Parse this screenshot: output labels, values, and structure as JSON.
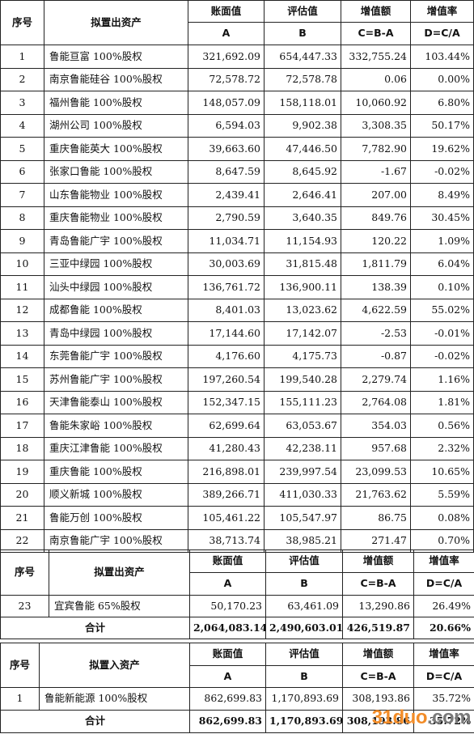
{
  "table1": {
    "headers": {
      "index": "序号",
      "asset": "拟置出资产",
      "book": "账面值",
      "appraised": "评估值",
      "increase": "增值额",
      "rate": "增值率",
      "book_sub": "A",
      "appraised_sub": "B",
      "increase_sub": "C=B-A",
      "rate_sub": "D=C/A"
    },
    "rows": [
      {
        "idx": "1",
        "name": "鲁能亘富 100%股权",
        "a": "321,692.09",
        "b": "654,447.33",
        "c": "332,755.24",
        "d": "103.44%"
      },
      {
        "idx": "2",
        "name": "南京鲁能硅谷 100%股权",
        "a": "72,578.72",
        "b": "72,578.78",
        "c": "0.06",
        "d": "0.00%"
      },
      {
        "idx": "3",
        "name": "福州鲁能 100%股权",
        "a": "148,057.09",
        "b": "158,118.01",
        "c": "10,060.92",
        "d": "6.80%"
      },
      {
        "idx": "4",
        "name": "湖州公司 100%股权",
        "a": "6,594.03",
        "b": "9,902.38",
        "c": "3,308.35",
        "d": "50.17%"
      },
      {
        "idx": "5",
        "name": "重庆鲁能英大 100%股权",
        "a": "39,663.60",
        "b": "47,446.50",
        "c": "7,782.90",
        "d": "19.62%"
      },
      {
        "idx": "6",
        "name": "张家口鲁能 100%股权",
        "a": "8,647.59",
        "b": "8,645.92",
        "c": "-1.67",
        "d": "-0.02%"
      },
      {
        "idx": "7",
        "name": "山东鲁能物业 100%股权",
        "a": "2,439.41",
        "b": "2,646.41",
        "c": "207.00",
        "d": "8.49%"
      },
      {
        "idx": "8",
        "name": "重庆鲁能物业 100%股权",
        "a": "2,790.59",
        "b": "3,640.35",
        "c": "849.76",
        "d": "30.45%"
      },
      {
        "idx": "9",
        "name": "青岛鲁能广宇 100%股权",
        "a": "11,034.71",
        "b": "11,154.93",
        "c": "120.22",
        "d": "1.09%"
      },
      {
        "idx": "10",
        "name": "三亚中绿园 100%股权",
        "a": "30,003.69",
        "b": "31,815.48",
        "c": "1,811.79",
        "d": "6.04%"
      },
      {
        "idx": "11",
        "name": "汕头中绿园 100%股权",
        "a": "136,761.72",
        "b": "136,900.11",
        "c": "138.39",
        "d": "0.10%"
      },
      {
        "idx": "12",
        "name": "成都鲁能 100%股权",
        "a": "8,401.03",
        "b": "13,023.62",
        "c": "4,622.59",
        "d": "55.02%"
      },
      {
        "idx": "13",
        "name": "青岛中绿园 100%股权",
        "a": "17,144.60",
        "b": "17,142.07",
        "c": "-2.53",
        "d": "-0.01%"
      },
      {
        "idx": "14",
        "name": "东莞鲁能广宇 100%股权",
        "a": "4,176.60",
        "b": "4,175.73",
        "c": "-0.87",
        "d": "-0.02%"
      },
      {
        "idx": "15",
        "name": "苏州鲁能广宇 100%股权",
        "a": "197,260.54",
        "b": "199,540.28",
        "c": "2,279.74",
        "d": "1.16%"
      },
      {
        "idx": "16",
        "name": "天津鲁能泰山 100%股权",
        "a": "152,347.15",
        "b": "155,111.23",
        "c": "2,764.08",
        "d": "1.81%"
      },
      {
        "idx": "17",
        "name": "鲁能朱家峪 100%股权",
        "a": "62,699.64",
        "b": "63,053.67",
        "c": "354.03",
        "d": "0.56%"
      },
      {
        "idx": "18",
        "name": "重庆江津鲁能 100%股权",
        "a": "41,280.43",
        "b": "42,238.11",
        "c": "957.68",
        "d": "2.32%"
      },
      {
        "idx": "19",
        "name": "重庆鲁能 100%股权",
        "a": "216,898.01",
        "b": "239,997.54",
        "c": "23,099.53",
        "d": "10.65%"
      },
      {
        "idx": "20",
        "name": "顺义新城 100%股权",
        "a": "389,266.71",
        "b": "411,030.33",
        "c": "21,763.62",
        "d": "5.59%"
      },
      {
        "idx": "21",
        "name": "鲁能万创 100%股权",
        "a": "105,461.22",
        "b": "105,547.97",
        "c": "86.75",
        "d": "0.08%"
      },
      {
        "idx": "22",
        "name": "南京鲁能广宇 100%股权",
        "a": "38,713.74",
        "b": "38,985.21",
        "c": "271.47",
        "d": "0.70%"
      }
    ]
  },
  "table2": {
    "headers": {
      "index": "序号",
      "asset": "拟置出资产",
      "book": "账面值",
      "appraised": "评估值",
      "increase": "增值额",
      "rate": "增值率",
      "book_sub": "A",
      "appraised_sub": "B",
      "increase_sub": "C=B-A",
      "rate_sub": "D=C/A"
    },
    "rows": [
      {
        "idx": "23",
        "name": "宜宾鲁能 65%股权",
        "a": "50,170.23",
        "b": "63,461.09",
        "c": "13,290.86",
        "d": "26.49%"
      }
    ],
    "total": {
      "label": "合计",
      "a": "2,064,083.14",
      "b": "2,490,603.01",
      "c": "426,519.87",
      "d": "20.66%"
    }
  },
  "table3": {
    "headers": {
      "index": "序号",
      "asset": "拟置入资产",
      "book": "账面值",
      "appraised": "评估值",
      "increase": "增值额",
      "rate": "增值率",
      "book_sub": "A",
      "appraised_sub": "B",
      "increase_sub": "C=B-A",
      "rate_sub": "D=C/A"
    },
    "rows": [
      {
        "idx": "1",
        "name": "鲁能新能源 100%股权",
        "a": "862,699.83",
        "b": "1,170,893.69",
        "c": "308,193.86",
        "d": "35.72%"
      }
    ],
    "total": {
      "label": "合计",
      "a": "862,699.83",
      "b": "1,170,893.69",
      "c": "308,193.86",
      "d": "35.72%"
    }
  },
  "watermark": {
    "text_a": "31duo",
    "text_b": ".com"
  }
}
